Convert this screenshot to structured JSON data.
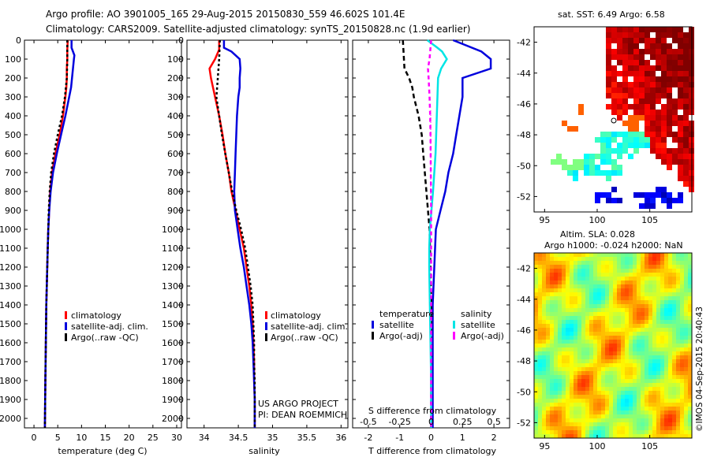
{
  "title": {
    "line1": "Argo profile: AO 3901005_165 29-Aug-2015 20150830_559 46.602S 101.4E",
    "line2": "Climatology: CARS2009. Satellite-adjusted climatology: synTS_20150828.nc (1.9d earlier)"
  },
  "colors": {
    "climatology": "#ff0000",
    "satellite": "#0000dd",
    "argo": "#000000",
    "salinity_satellite": "#00e5e5",
    "salinity_argo": "#ff00ff"
  },
  "depth_ticks": [
    "0",
    "100",
    "200",
    "300",
    "400",
    "500",
    "600",
    "700",
    "800",
    "900",
    "1000",
    "1100",
    "1200",
    "1300",
    "1400",
    "1500",
    "1600",
    "1700",
    "1800",
    "1900",
    "2000"
  ],
  "legend": {
    "climatology": "climatology",
    "satellite_clim": "satellite-adj. clim.",
    "argo_raw": "Argo(..raw -QC)",
    "temperature": "temperature",
    "salinity": "salinity",
    "satellite": "satellite",
    "argo_adj": "Argo(-adj)"
  },
  "credits": {
    "project": "US ARGO PROJECT",
    "pi": "PI: DEAN ROEMMICH",
    "imos": "©IMOS 04-Sep-2015 20:40:43"
  },
  "chart_data": [
    {
      "type": "line",
      "xlabel": "temperature (deg C)",
      "xticks": [
        "0",
        "5",
        "10",
        "15",
        "20",
        "25",
        "30"
      ],
      "xlim": [
        -2,
        31
      ],
      "ylim": [
        2050,
        0
      ],
      "series": [
        {
          "name": "climatology",
          "color": "#ff0000",
          "depth": [
            0,
            50,
            100,
            150,
            200,
            250,
            300,
            400,
            500,
            600,
            700,
            800,
            900,
            1000,
            1100,
            1200,
            1400,
            1600,
            1800,
            2050
          ],
          "values": [
            7.1,
            7.0,
            7.0,
            6.9,
            6.9,
            6.8,
            6.6,
            6.1,
            5.4,
            4.5,
            3.8,
            3.4,
            3.2,
            3.0,
            2.9,
            2.8,
            2.6,
            2.5,
            2.4,
            2.3
          ]
        },
        {
          "name": "satellite-adj. clim.",
          "color": "#0000dd",
          "depth": [
            0,
            40,
            80,
            100,
            150,
            200,
            250,
            300,
            400,
            500,
            600,
            700,
            800,
            900,
            1000,
            1100,
            1200,
            1400,
            1600,
            1800,
            2050
          ],
          "values": [
            7.9,
            7.9,
            8.5,
            8.4,
            8.2,
            8.0,
            7.8,
            7.4,
            6.6,
            5.7,
            4.8,
            4.0,
            3.5,
            3.2,
            3.0,
            2.9,
            2.8,
            2.6,
            2.5,
            2.4,
            2.3
          ]
        },
        {
          "name": "Argo(..raw -QC)",
          "color": "#000000",
          "depth": [
            0,
            100,
            200,
            300,
            400,
            500,
            600,
            700,
            800,
            900,
            1000,
            1200,
            1400,
            1600,
            1800,
            2050
          ],
          "values": [
            7.0,
            7.0,
            6.9,
            6.5,
            5.9,
            5.0,
            4.2,
            3.6,
            3.3,
            3.1,
            3.0,
            2.8,
            2.6,
            2.5,
            2.4,
            2.3
          ]
        }
      ]
    },
    {
      "type": "line",
      "xlabel": "salinity",
      "xticks": [
        "34",
        "34.5",
        "35",
        "35.5",
        "36"
      ],
      "xlim": [
        33.75,
        36.1
      ],
      "ylim": [
        2050,
        0
      ],
      "series": [
        {
          "name": "climatology",
          "color": "#ff0000",
          "depth": [
            0,
            50,
            100,
            150,
            200,
            250,
            300,
            400,
            500,
            600,
            700,
            800,
            900,
            1000,
            1100,
            1200,
            1300,
            1400,
            1500,
            1600,
            1700,
            1800,
            1900,
            2050
          ],
          "values": [
            34.22,
            34.22,
            34.16,
            34.08,
            34.1,
            34.13,
            34.16,
            34.22,
            34.27,
            34.31,
            34.36,
            34.4,
            34.46,
            34.52,
            34.58,
            34.62,
            34.66,
            34.69,
            34.71,
            34.72,
            34.73,
            34.73,
            34.74,
            34.74
          ]
        },
        {
          "name": "satellite-adj. clim.",
          "color": "#0000dd",
          "depth": [
            0,
            40,
            60,
            100,
            150,
            200,
            250,
            300,
            400,
            500,
            600,
            700,
            800,
            900,
            1000,
            1100,
            1200,
            1300,
            1400,
            1500,
            1600,
            1700,
            1800,
            1900,
            2050
          ],
          "values": [
            34.29,
            34.29,
            34.4,
            34.52,
            34.53,
            34.52,
            34.52,
            34.5,
            34.48,
            34.47,
            34.46,
            34.45,
            34.44,
            34.45,
            34.49,
            34.53,
            34.58,
            34.62,
            34.66,
            34.69,
            34.71,
            34.72,
            34.73,
            34.74,
            34.74
          ]
        },
        {
          "name": "Argo(..raw -QC)",
          "color": "#000000",
          "depth": [
            0,
            100,
            200,
            300,
            400,
            500,
            600,
            700,
            800,
            900,
            1000,
            1100,
            1200,
            1300,
            1400,
            1500,
            1600,
            1700,
            1800,
            1900,
            2050
          ],
          "values": [
            34.23,
            34.22,
            34.2,
            34.18,
            34.22,
            34.26,
            34.31,
            34.36,
            34.41,
            34.47,
            34.54,
            34.6,
            34.64,
            34.68,
            34.71,
            34.72,
            34.73,
            34.73,
            34.74,
            34.74,
            34.74
          ]
        }
      ]
    },
    {
      "type": "line",
      "title_top": "S difference from climatology",
      "xlabel": "T difference from climatology",
      "xticks_top": [
        "-0.5",
        "-0.25",
        "0",
        "0.25",
        "0.5"
      ],
      "xticks": [
        "-2",
        "-1",
        "0",
        "1",
        "2"
      ],
      "xlim": [
        -2.5,
        2.5
      ],
      "ylim": [
        2050,
        0
      ],
      "series": [
        {
          "name": "temperature satellite",
          "color": "#0000dd",
          "depth": [
            0,
            60,
            100,
            150,
            200,
            300,
            400,
            500,
            600,
            700,
            800,
            900,
            1000,
            1200,
            1400,
            1600,
            1800,
            2050
          ],
          "values": [
            0.7,
            1.6,
            1.9,
            1.9,
            1.0,
            1.0,
            0.9,
            0.8,
            0.7,
            0.55,
            0.45,
            0.3,
            0.15,
            0.1,
            0.05,
            0.05,
            0.05,
            0.05
          ]
        },
        {
          "name": "temperature Argo(-adj)",
          "color": "#000000",
          "depth": [
            0,
            150,
            200,
            250,
            300,
            400,
            500,
            600,
            700,
            800,
            900,
            1000,
            1200,
            1400,
            1600,
            1800,
            2050
          ],
          "values": [
            -0.9,
            -0.85,
            -0.7,
            -0.6,
            -0.55,
            -0.4,
            -0.3,
            -0.25,
            -0.2,
            -0.15,
            -0.1,
            -0.05,
            -0.02,
            0.0,
            0.0,
            0.0,
            0.0
          ]
        },
        {
          "name": "salinity satellite",
          "color": "#00e5e5",
          "depth": [
            0,
            40,
            60,
            100,
            150,
            200,
            300,
            400,
            500,
            600,
            700,
            800,
            900,
            1000,
            1100,
            1200,
            1300,
            1400,
            1600,
            1800,
            2050
          ],
          "values": [
            -0.12,
            0.2,
            0.35,
            0.5,
            0.32,
            0.22,
            0.2,
            0.18,
            0.16,
            0.14,
            0.1,
            0.06,
            0.01,
            -0.04,
            -0.06,
            -0.06,
            -0.05,
            -0.04,
            -0.02,
            0.0,
            0.0
          ]
        },
        {
          "name": "salinity Argo(-adj)",
          "color": "#ff00ff",
          "depth": [
            0,
            100,
            150,
            200,
            300,
            400,
            500,
            700,
            900,
            1200,
            1600,
            2050
          ],
          "values": [
            0.0,
            -0.05,
            -0.1,
            -0.08,
            -0.05,
            -0.03,
            -0.02,
            -0.01,
            0.0,
            0.0,
            0.0,
            0.0
          ]
        }
      ]
    },
    {
      "type": "heatmap",
      "title": "sat. SST: 6.49 Argo: 6.58",
      "xticks": [
        "95",
        "100",
        "105"
      ],
      "yticks": [
        "-42",
        "-44",
        "-46",
        "-48",
        "-50",
        "-52"
      ],
      "xlim": [
        94,
        109
      ],
      "ylim": [
        -53,
        -41
      ]
    },
    {
      "type": "heatmap",
      "title": "Altim. SLA: 0.028",
      "subtitle": "Argo h1000: -0.024 h2000: NaN",
      "xticks": [
        "95",
        "100",
        "105"
      ],
      "yticks": [
        "-42",
        "-44",
        "-46",
        "-48",
        "-50",
        "-52"
      ],
      "xlim": [
        94,
        109
      ],
      "ylim": [
        -53,
        -41
      ]
    }
  ]
}
